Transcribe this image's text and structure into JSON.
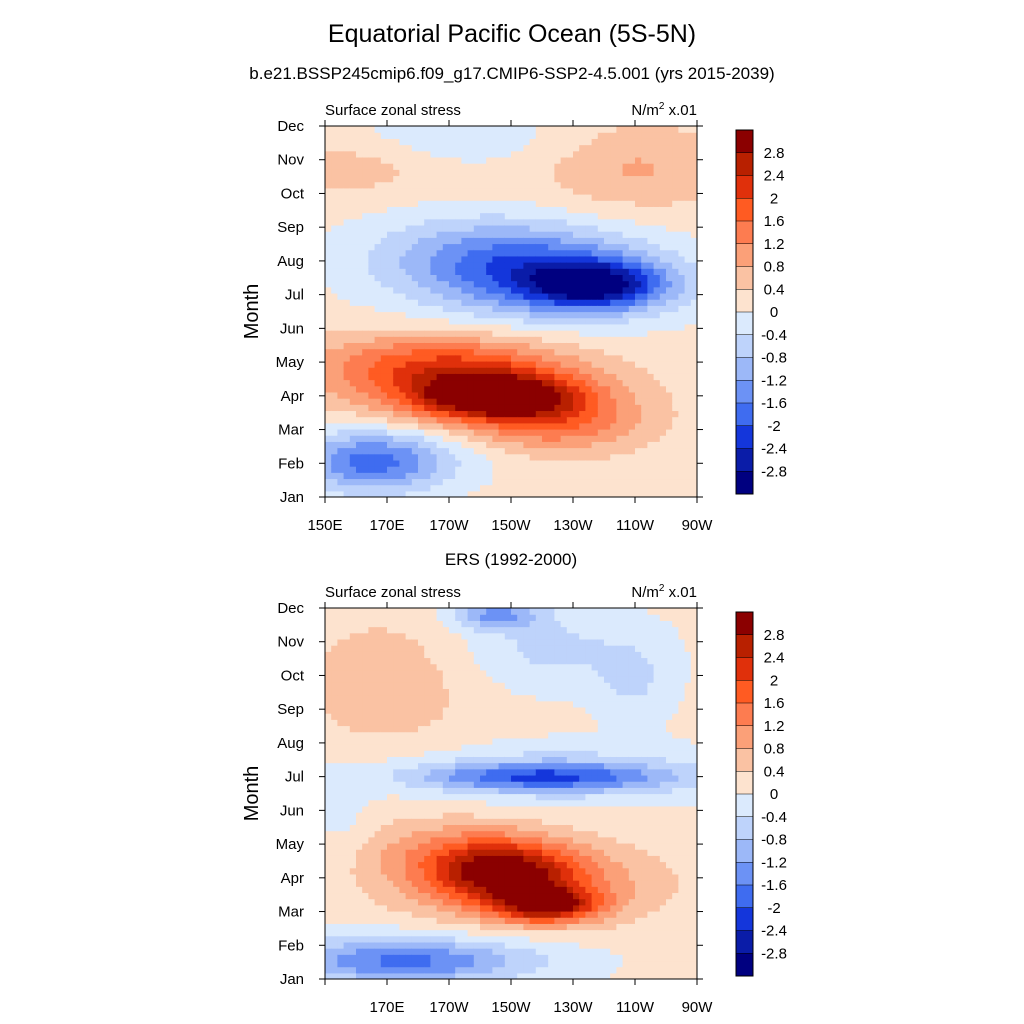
{
  "title": "Equatorial Pacific Ocean (5S-5N)",
  "subtitle": "b.e21.BSSP245cmip6.f09_g17.CMIP6-SSP2-4.5.001 (yrs 2015-2039)",
  "chart_data": [
    {
      "type": "heatmap",
      "panel": "model",
      "title": "",
      "left_label": "Surface zonal stress",
      "units_label": "N/m",
      "units_sup": "2",
      "units_suffix": " x.01",
      "ylabel": "Month",
      "xlabel": "",
      "x_ticks": [
        "150E",
        "170E",
        "170W",
        "150W",
        "130W",
        "110W",
        "90W"
      ],
      "x_range": [
        "150E",
        "90W"
      ],
      "y_ticks": [
        "Jan",
        "Feb",
        "Mar",
        "Apr",
        "May",
        "Jun",
        "Jul",
        "Aug",
        "Sep",
        "Oct",
        "Nov",
        "Dec"
      ],
      "colorbar_labels": [
        "2.8",
        "2.4",
        "2",
        "1.6",
        "1.2",
        "0.8",
        "0.4",
        "0",
        "-0.4",
        "-0.8",
        "-1.2",
        "-1.6",
        "-2",
        "-2.4",
        "-2.8"
      ],
      "colorbar_colors": [
        "#8b0000",
        "#b82000",
        "#e0300b",
        "#ff5b22",
        "#fd7c50",
        "#fba078",
        "#fac2a3",
        "#fde3cf",
        "#dbeafd",
        "#bed3fb",
        "#9cb8f8",
        "#6c92f5",
        "#3f6cf0",
        "#1436db",
        "#0a1ca8",
        "#000080"
      ],
      "features": [
        {
          "lon": 205,
          "month": 4.0,
          "value": 2.2,
          "wlon": 22,
          "wmon": 0.55
        },
        {
          "lon": 198,
          "month": 4.2,
          "value": 1.8,
          "wlon": 38,
          "wmon": 1.2
        },
        {
          "lon": 225,
          "month": 3.3,
          "value": 1.2,
          "wlon": 28,
          "wmon": 1.0
        },
        {
          "lon": 180,
          "month": 5.0,
          "value": 1.0,
          "wlon": 40,
          "wmon": 0.9
        },
        {
          "lon": 238,
          "month": 7.3,
          "value": -2.2,
          "wlon": 22,
          "wmon": 0.7
        },
        {
          "lon": 222,
          "month": 7.5,
          "value": -1.6,
          "wlon": 40,
          "wmon": 1.3
        },
        {
          "lon": 200,
          "month": 8.2,
          "value": -1.0,
          "wlon": 38,
          "wmon": 1.2
        },
        {
          "lon": 165,
          "month": 2.0,
          "value": -1.5,
          "wlon": 22,
          "wmon": 0.9
        },
        {
          "lon": 175,
          "month": 2.4,
          "value": -0.6,
          "wlon": 35,
          "wmon": 1.0
        },
        {
          "lon": 250,
          "month": 10.8,
          "value": 0.7,
          "wlon": 30,
          "wmon": 1.3
        },
        {
          "lon": 158,
          "month": 10.8,
          "value": 0.5,
          "wlon": 25,
          "wmon": 0.8
        },
        {
          "lon": 195,
          "month": 11.6,
          "value": -0.4,
          "wlon": 40,
          "wmon": 0.8
        }
      ],
      "base_value": 0.15
    },
    {
      "type": "heatmap",
      "panel": "observations",
      "title": "ERS (1992-2000)",
      "left_label": "Surface zonal stress",
      "units_label": "N/m",
      "units_sup": "2",
      "units_suffix": " x.01",
      "ylabel": "Month",
      "xlabel": "",
      "x_ticks": [
        "",
        "170E",
        "170W",
        "150W",
        "130W",
        "110W",
        "90W"
      ],
      "x_range": [
        "150E",
        "90W"
      ],
      "y_ticks": [
        "Jan",
        "Feb",
        "Mar",
        "Apr",
        "May",
        "Jun",
        "Jul",
        "Aug",
        "Sep",
        "Oct",
        "Nov",
        "Dec"
      ],
      "colorbar_labels": [
        "2.8",
        "2.4",
        "2",
        "1.6",
        "1.2",
        "0.8",
        "0.4",
        "0",
        "-0.4",
        "-0.8",
        "-1.2",
        "-1.6",
        "-2",
        "-2.4",
        "-2.8"
      ],
      "colorbar_colors": [
        "#8b0000",
        "#b82000",
        "#e0300b",
        "#ff5b22",
        "#fd7c50",
        "#fba078",
        "#fac2a3",
        "#fde3cf",
        "#dbeafd",
        "#bed3fb",
        "#9cb8f8",
        "#6c92f5",
        "#3f6cf0",
        "#1436db",
        "#0a1ca8",
        "#000080"
      ],
      "features": [
        {
          "lon": 222,
          "month": 3.2,
          "value": 2.2,
          "wlon": 16,
          "wmon": 0.5
        },
        {
          "lon": 208,
          "month": 4.2,
          "value": 1.9,
          "wlon": 22,
          "wmon": 0.9
        },
        {
          "lon": 215,
          "month": 3.8,
          "value": 1.3,
          "wlon": 40,
          "wmon": 1.2
        },
        {
          "lon": 190,
          "month": 4.8,
          "value": 0.8,
          "wlon": 30,
          "wmon": 1.0
        },
        {
          "lon": 220,
          "month": 7.0,
          "value": -1.5,
          "wlon": 40,
          "wmon": 0.4
        },
        {
          "lon": 225,
          "month": 7.1,
          "value": -0.8,
          "wlon": 50,
          "wmon": 0.8
        },
        {
          "lon": 175,
          "month": 1.5,
          "value": -1.4,
          "wlon": 38,
          "wmon": 0.6
        },
        {
          "lon": 180,
          "month": 1.8,
          "value": -0.5,
          "wlon": 50,
          "wmon": 0.8
        },
        {
          "lon": 205,
          "month": 11.8,
          "value": -1.4,
          "wlon": 14,
          "wmon": 0.4
        },
        {
          "lon": 222,
          "month": 10.8,
          "value": -0.6,
          "wlon": 30,
          "wmon": 1.2
        },
        {
          "lon": 170,
          "month": 9.8,
          "value": 0.6,
          "wlon": 28,
          "wmon": 2.0
        },
        {
          "lon": 250,
          "month": 9.8,
          "value": -0.5,
          "wlon": 12,
          "wmon": 1.2
        },
        {
          "lon": 155,
          "month": 5.8,
          "value": -0.3,
          "wlon": 10,
          "wmon": 1.4
        }
      ],
      "base_value": 0.1
    }
  ]
}
